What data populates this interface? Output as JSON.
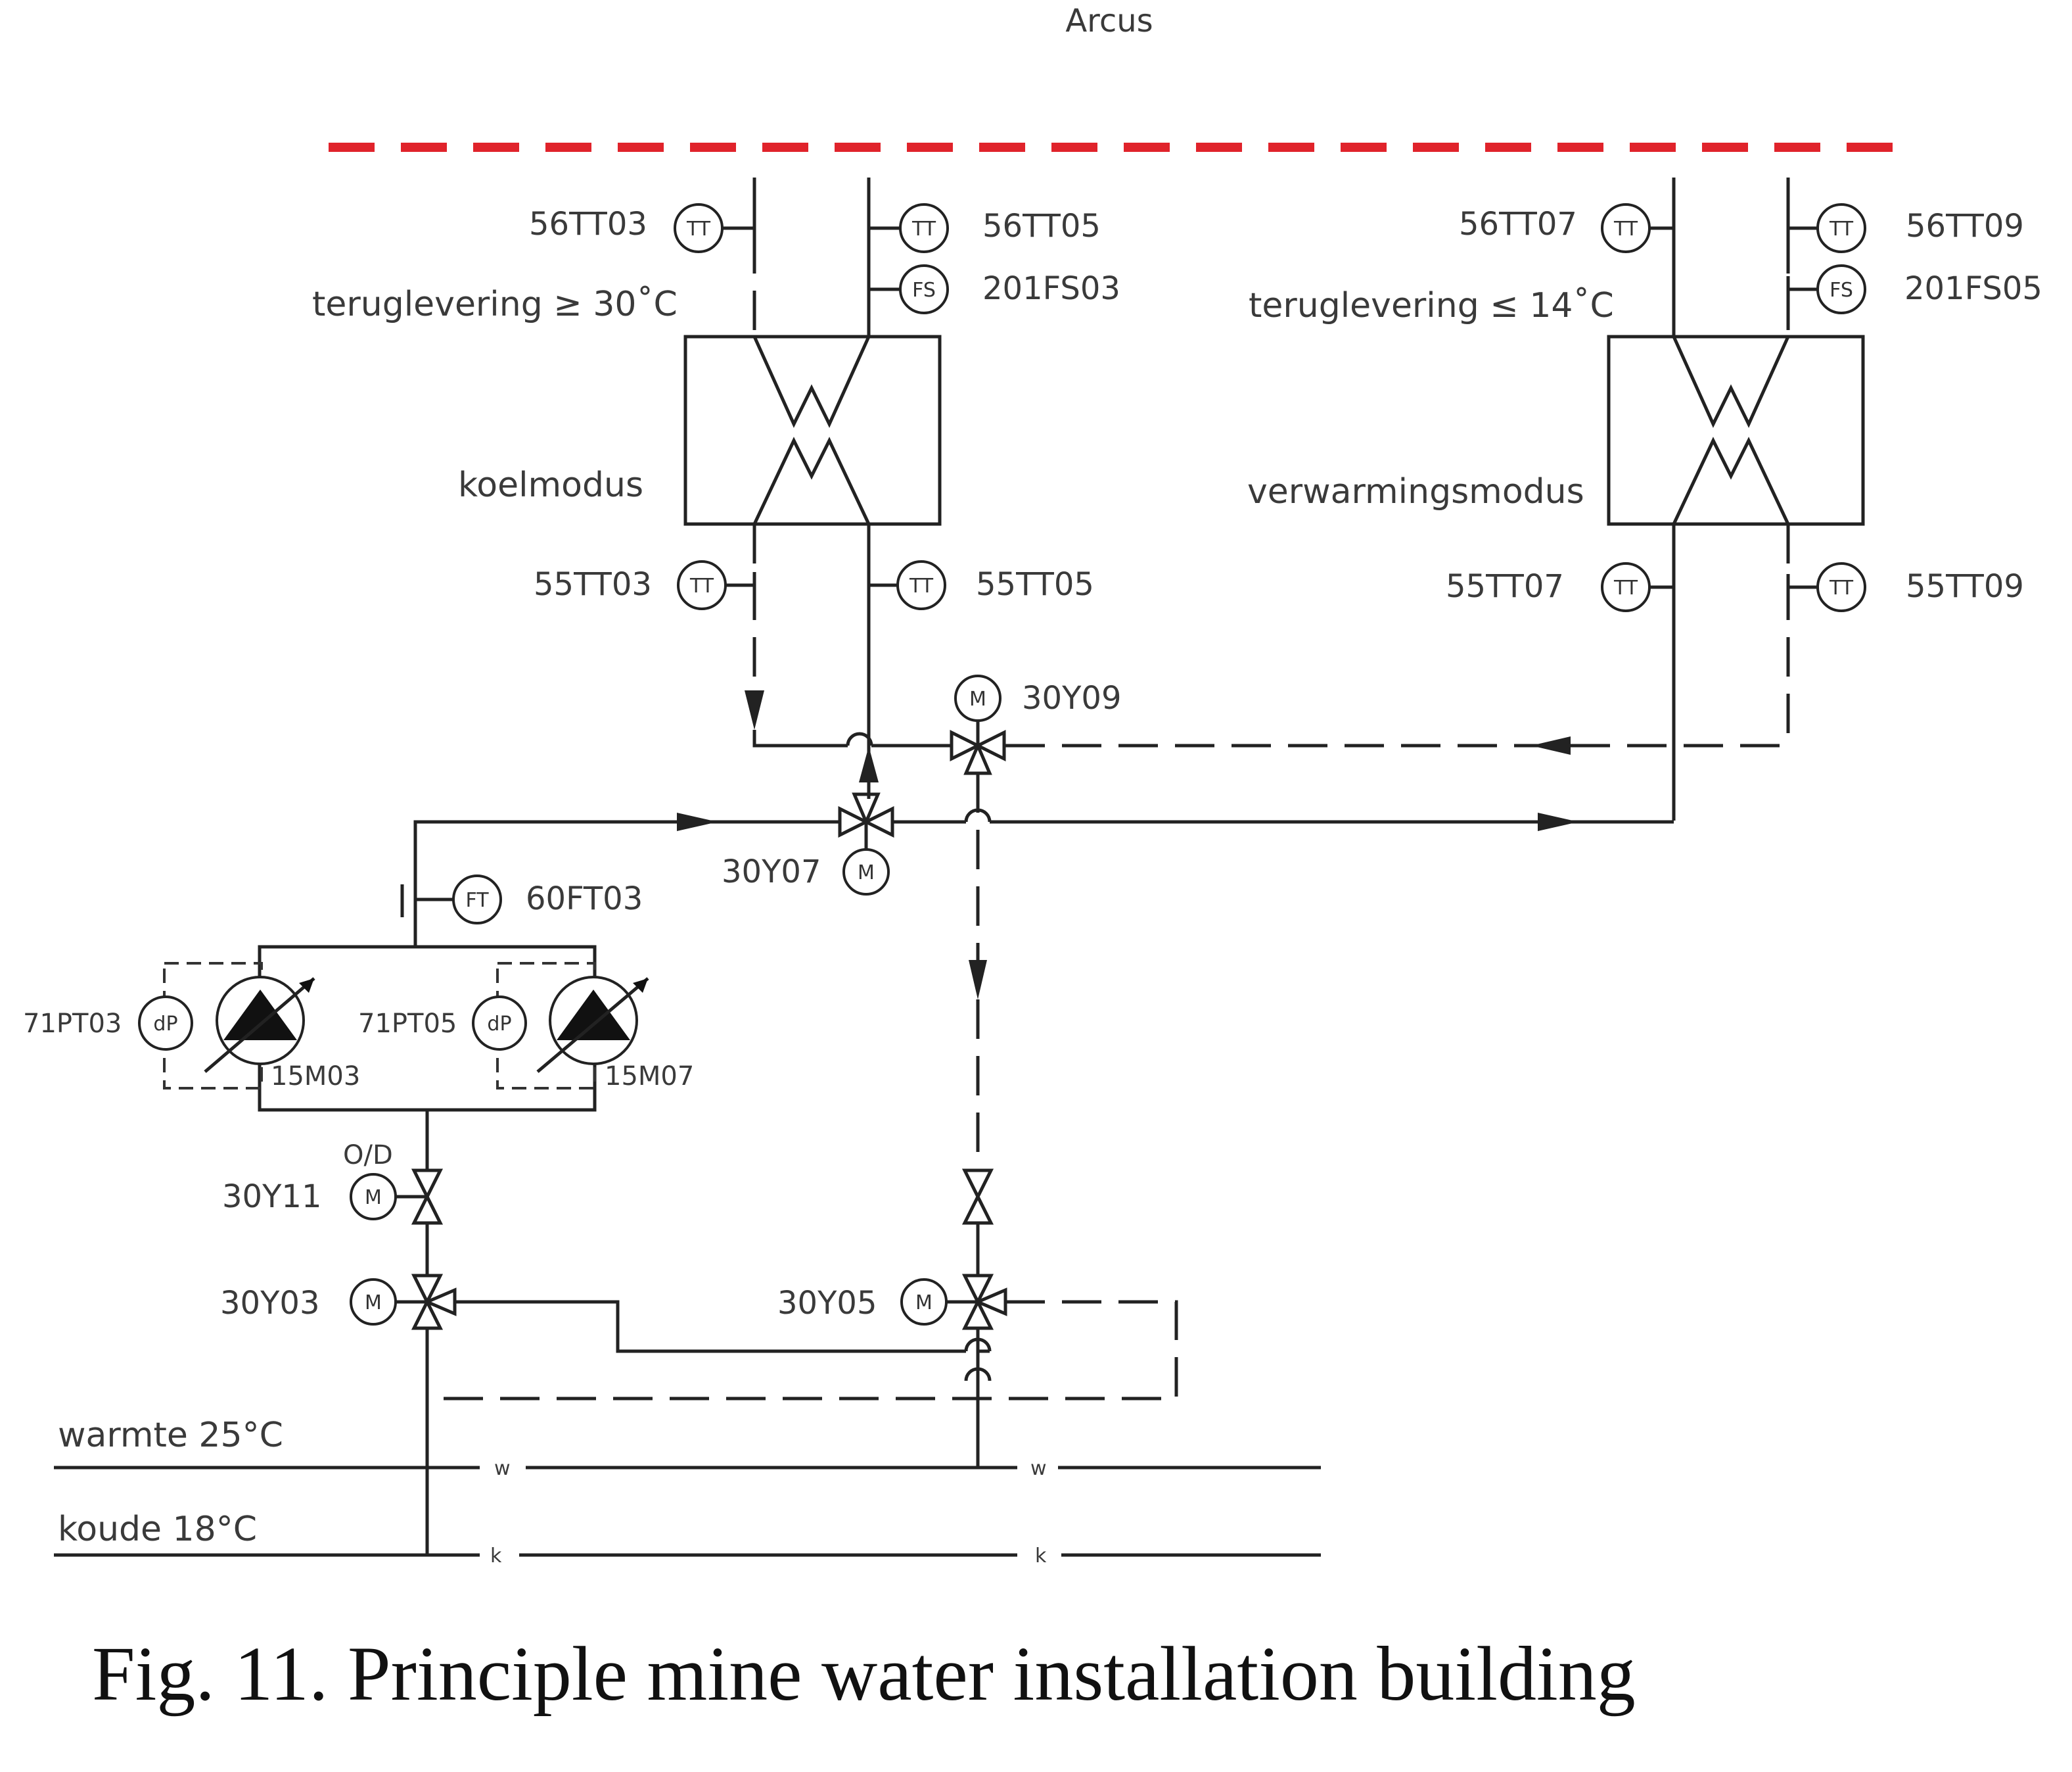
{
  "title": "Arcus",
  "caption": "Fig. 11. Principle mine water installation building",
  "hx_left": {
    "mode": "koelmodus",
    "return_condition": "teruglevering ≥ 30˚C",
    "tag_top_left": "56TT03",
    "tag_top_right": "56TT05",
    "tag_flow_switch": "201FS03",
    "tag_bottom_left": "55TT03",
    "tag_bottom_right": "55TT05"
  },
  "hx_right": {
    "mode": "verwarmingsmodus",
    "return_condition": "teruglevering ≤ 14˚C",
    "tag_top_left": "56TT07",
    "tag_top_right": "56TT09",
    "tag_flow_switch": "201FS05",
    "tag_bottom_left": "55TT07",
    "tag_bottom_right": "55TT09"
  },
  "valves": {
    "v30y09": "30Y09",
    "v30y07": "30Y07",
    "v30y11": "30Y11",
    "v30y11_mode": "O/D",
    "v30y03": "30Y03",
    "v30y05": "30Y05"
  },
  "flow_meter": "60FT03",
  "pumps": {
    "p1_tag": "15M03",
    "p1_dp": "71PT03",
    "p2_tag": "15M07",
    "p2_dp": "71PT05"
  },
  "instruments": {
    "tt": "TT",
    "fs": "FS",
    "ft": "FT",
    "dp": "dP",
    "m": "M"
  },
  "lines": {
    "warm_label": "warmte  25°C",
    "cold_label": "koude  18°C",
    "warm_marker": "w",
    "cold_marker": "k"
  }
}
